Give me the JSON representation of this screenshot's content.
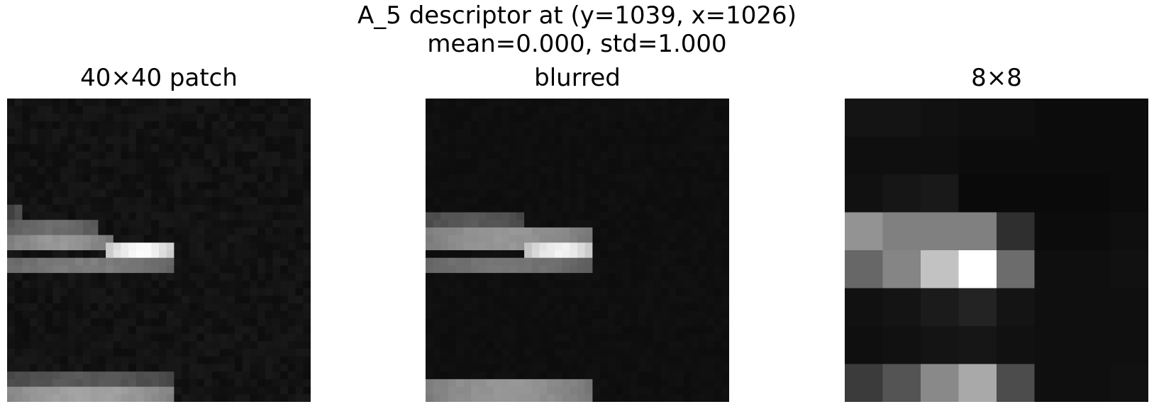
{
  "figure": {
    "title_line1": "A_5 descriptor at (y=1039, x=1026)",
    "title_line2": "mean=0.000, std=1.000"
  },
  "chart_data": [
    {
      "type": "heatmap",
      "title": "40×40 patch",
      "colormap": "gray",
      "grid_size": [
        40,
        40
      ],
      "axes": "off",
      "features": [
        {
          "row_start": 16,
          "row_end": 18,
          "col_start": 0,
          "col_end": 12,
          "level": 0.38
        },
        {
          "row_start": 18,
          "row_end": 20,
          "col_start": 0,
          "col_end": 14,
          "level": 0.55
        },
        {
          "row_start": 19,
          "row_end": 21,
          "col_start": 13,
          "col_end": 22,
          "level": 0.95
        },
        {
          "row_start": 21,
          "row_end": 23,
          "col_start": 0,
          "col_end": 22,
          "level": 0.45
        },
        {
          "row_start": 14,
          "row_end": 16,
          "col_start": 0,
          "col_end": 2,
          "level": 0.25
        },
        {
          "row_start": 38,
          "row_end": 40,
          "col_start": 0,
          "col_end": 22,
          "level": 0.6
        },
        {
          "row_start": 36,
          "row_end": 38,
          "col_start": 0,
          "col_end": 22,
          "level": 0.3
        }
      ]
    },
    {
      "type": "heatmap",
      "title": "blurred",
      "colormap": "gray",
      "grid_size": [
        40,
        40
      ],
      "axes": "off",
      "features": [
        {
          "row_start": 15,
          "row_end": 17,
          "col_start": 0,
          "col_end": 13,
          "level": 0.3
        },
        {
          "row_start": 17,
          "row_end": 20,
          "col_start": 0,
          "col_end": 22,
          "level": 0.55
        },
        {
          "row_start": 19,
          "row_end": 21,
          "col_start": 13,
          "col_end": 22,
          "level": 0.92
        },
        {
          "row_start": 21,
          "row_end": 23,
          "col_start": 0,
          "col_end": 22,
          "level": 0.42
        },
        {
          "row_start": 37,
          "row_end": 40,
          "col_start": 0,
          "col_end": 22,
          "level": 0.55
        }
      ]
    },
    {
      "type": "heatmap",
      "title": "8×8",
      "colormap": "gray",
      "grid_size": [
        8,
        8
      ],
      "axes": "off",
      "values": [
        [
          0.04,
          0.04,
          0.03,
          0.02,
          0.02,
          0.01,
          0.01,
          0.01
        ],
        [
          0.02,
          0.02,
          0.02,
          0.01,
          0.01,
          0.01,
          0.01,
          0.01
        ],
        [
          0.03,
          0.05,
          0.06,
          0.0,
          0.0,
          0.0,
          0.0,
          0.01
        ],
        [
          0.56,
          0.48,
          0.48,
          0.48,
          0.15,
          0.01,
          0.01,
          0.02
        ],
        [
          0.38,
          0.5,
          0.75,
          1.0,
          0.4,
          0.02,
          0.02,
          0.03
        ],
        [
          0.03,
          0.04,
          0.07,
          0.1,
          0.04,
          0.02,
          0.02,
          0.02
        ],
        [
          0.02,
          0.03,
          0.04,
          0.05,
          0.03,
          0.02,
          0.02,
          0.02
        ],
        [
          0.2,
          0.3,
          0.52,
          0.65,
          0.27,
          0.02,
          0.02,
          0.03
        ]
      ]
    }
  ]
}
